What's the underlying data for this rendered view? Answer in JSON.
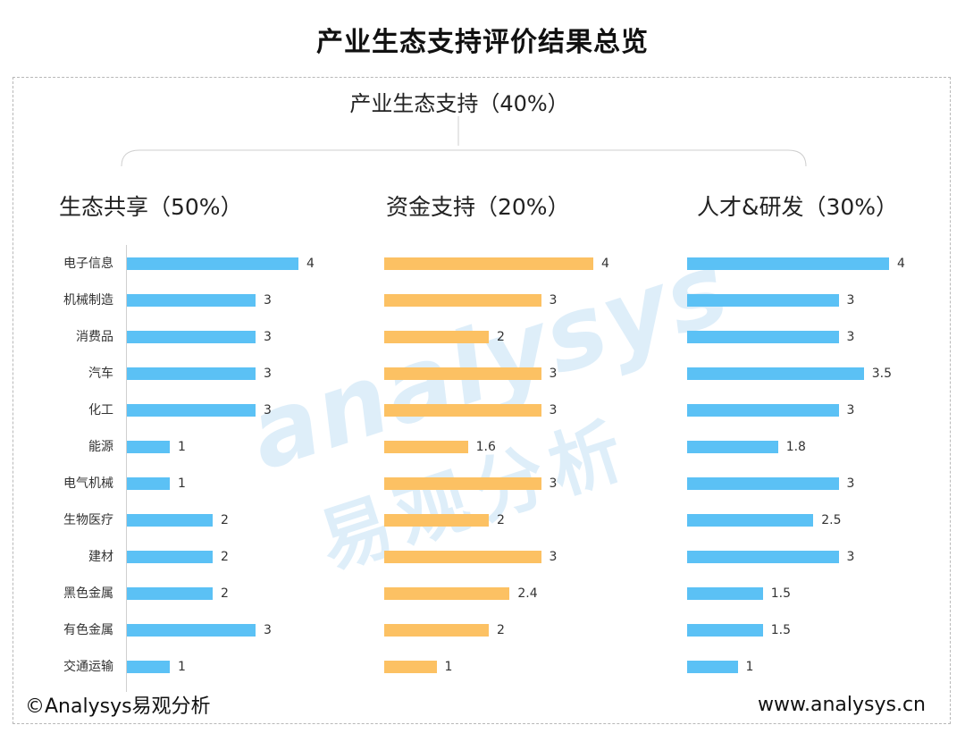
{
  "title": "产业生态支持评价结果总览",
  "top_label": "产业生态支持（40%）",
  "footer": {
    "left": "©Analysys易观分析",
    "right": "www.analysys.cn"
  },
  "watermark": {
    "en": "analysys",
    "cn": "易观分析"
  },
  "colors": {
    "blue": "#5bc1f5",
    "orange": "#fcc163"
  },
  "chart_data": [
    {
      "type": "bar",
      "orientation": "horizontal",
      "title": "生态共享（50%）",
      "color": "#5bc1f5",
      "categories": [
        "电子信息",
        "机械制造",
        "消费品",
        "汽车",
        "化工",
        "能源",
        "电气机械",
        "生物医疗",
        "建材",
        "黑色金属",
        "有色金属",
        "交通运输"
      ],
      "values": [
        4,
        3,
        3,
        3,
        3,
        1,
        1,
        2,
        2,
        2,
        3,
        1
      ],
      "value_labels": [
        "4",
        "3",
        "3",
        "3",
        "3",
        "1",
        "1",
        "2",
        "2",
        "2",
        "3",
        "1"
      ],
      "xlim": [
        0,
        4
      ]
    },
    {
      "type": "bar",
      "orientation": "horizontal",
      "title": "资金支持（20%）",
      "color": "#fcc163",
      "categories": [
        "电子信息",
        "机械制造",
        "消费品",
        "汽车",
        "化工",
        "能源",
        "电气机械",
        "生物医疗",
        "建材",
        "黑色金属",
        "有色金属",
        "交通运输"
      ],
      "values": [
        4,
        3,
        2,
        3,
        3,
        1.6,
        3,
        2,
        3,
        2.4,
        2,
        1
      ],
      "value_labels": [
        "4",
        "3",
        "2",
        "3",
        "3",
        "1.6",
        "3",
        "2",
        "3",
        "2.4",
        "2",
        "1"
      ],
      "xlim": [
        0,
        4
      ]
    },
    {
      "type": "bar",
      "orientation": "horizontal",
      "title": "人才&研发（30%）",
      "color": "#5bc1f5",
      "categories": [
        "电子信息",
        "机械制造",
        "消费品",
        "汽车",
        "化工",
        "能源",
        "电气机械",
        "生物医疗",
        "建材",
        "黑色金属",
        "有色金属",
        "交通运输"
      ],
      "values": [
        4,
        3,
        3,
        3.5,
        3,
        1.8,
        3,
        2.5,
        3,
        1.5,
        1.5,
        1
      ],
      "value_labels": [
        "4",
        "3",
        "3",
        "3.5",
        "3",
        "1.8",
        "3",
        "2.5",
        "3",
        "1.5",
        "1.5",
        "1"
      ],
      "xlim": [
        0,
        4
      ]
    }
  ]
}
